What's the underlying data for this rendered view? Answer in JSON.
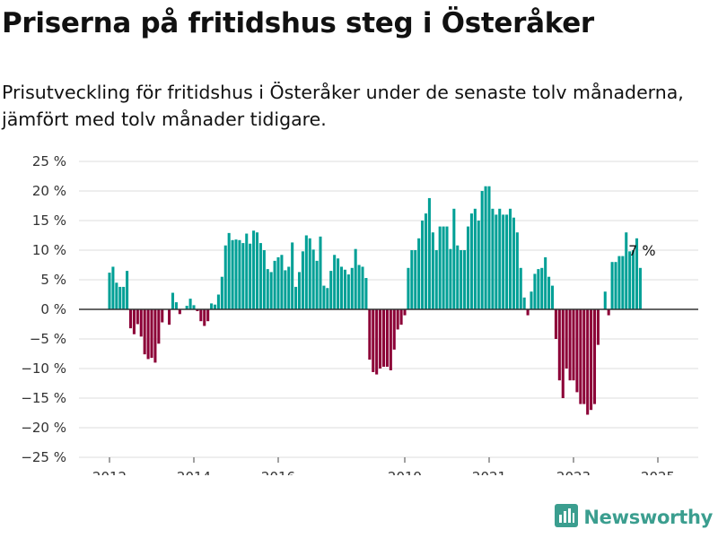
{
  "header": {
    "title": "Priserna på fritidshus steg i Österåker",
    "subtitle": "Prisutveckling för fritidshus i Österåker under de senaste tolv månaderna, jämfört med tolv månader tidigare."
  },
  "brand": {
    "name": "Newsworthy",
    "icon": "bar-chart-logo-icon"
  },
  "colors": {
    "positive": "#00a096",
    "negative": "#8c0037",
    "zero_line": "#333333",
    "grid": "#dddddd"
  },
  "chart_data": {
    "type": "bar",
    "ylim": [
      -25,
      25
    ],
    "yticks": [
      25,
      20,
      15,
      10,
      5,
      0,
      -5,
      -10,
      -15,
      -20,
      -25
    ],
    "ytick_labels": [
      "25 %",
      "20 %",
      "15 %",
      "10 %",
      "5 %",
      "0 %",
      "−5 %",
      "−10 %",
      "−15 %",
      "−20 %",
      "−25 %"
    ],
    "xticks": [
      {
        "label": "2012",
        "year": 2012
      },
      {
        "label": "2014",
        "year": 2014
      },
      {
        "label": "2016",
        "year": 2016
      },
      {
        "label": "2019",
        "year": 2019
      },
      {
        "label": "2021",
        "year": 2021
      },
      {
        "label": "2023",
        "year": 2023
      },
      {
        "label": "2025",
        "year": 2025
      }
    ],
    "start": "2012-01",
    "grid": true,
    "end_label": "7 %",
    "values": [
      6.2,
      7.2,
      4.5,
      3.8,
      3.8,
      6.5,
      -3.2,
      -4.2,
      -2.5,
      -4.6,
      -7.6,
      -8.4,
      -8.2,
      -9.0,
      -5.8,
      -2.2,
      0,
      -2.6,
      2.8,
      1.2,
      -0.8,
      0,
      0.6,
      1.8,
      0.7,
      -0.3,
      -2.0,
      -2.8,
      -2.0,
      1.0,
      0.8,
      2.5,
      5.5,
      10.8,
      12.9,
      11.7,
      11.8,
      11.7,
      11.2,
      12.8,
      11.1,
      13.3,
      13.0,
      11.2,
      10.0,
      6.8,
      6.3,
      8.2,
      8.8,
      9.2,
      6.6,
      7.2,
      11.3,
      3.8,
      6.3,
      9.8,
      12.5,
      12.0,
      10.1,
      8.2,
      12.3,
      4.0,
      3.6,
      6.5,
      9.2,
      8.6,
      7.2,
      6.7,
      5.9,
      7.0,
      10.2,
      7.5,
      7.2,
      5.3,
      -8.5,
      -10.6,
      -11.0,
      -10.0,
      -9.7,
      -9.7,
      -10.3,
      -6.8,
      -3.4,
      -2.6,
      -1.0,
      7.0,
      10.0,
      10.0,
      12.0,
      15.0,
      16.2,
      18.8,
      13.0,
      10.0,
      14.0,
      14.0,
      14.0,
      10.2,
      17.0,
      10.8,
      10.0,
      10.0,
      14.0,
      16.2,
      17.0,
      15.0,
      20.0,
      20.8,
      20.8,
      17.0,
      16.0,
      17.0,
      16.0,
      16.0,
      17.0,
      15.5,
      13.0,
      7.0,
      2.0,
      -1.0,
      3.0,
      6.0,
      6.8,
      7.0,
      8.8,
      5.5,
      4.0,
      -5.0,
      -12.0,
      -15.0,
      -10.0,
      -12.0,
      -12.0,
      -14.0,
      -16.0,
      -16.0,
      -17.8,
      -17.0,
      -16.0,
      -6.0,
      0,
      3.0,
      -1.0,
      8.0,
      8.0,
      9.0,
      9.0,
      13.0,
      9.8,
      10.0,
      12.0,
      7.0
    ]
  }
}
